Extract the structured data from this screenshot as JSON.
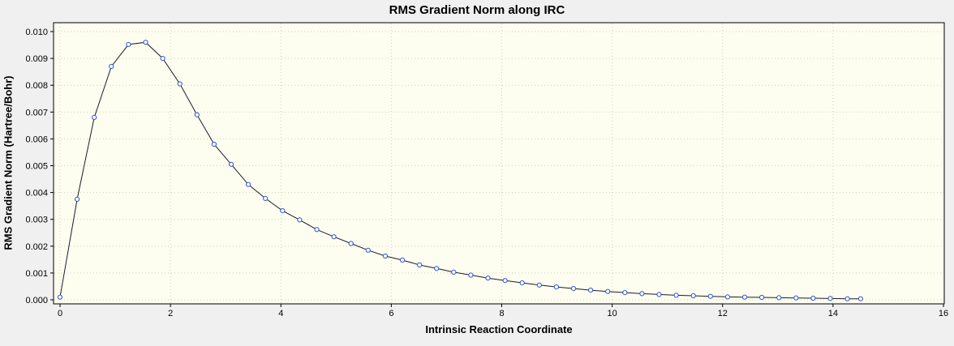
{
  "chart_data": {
    "type": "line",
    "title": "RMS Gradient Norm along IRC",
    "xlabel": "Intrinsic Reaction Coordinate",
    "ylabel": "RMS Gradient Norm (Hartree/Bohr)",
    "xlim": [
      0,
      16
    ],
    "ylim": [
      0,
      0.01
    ],
    "grid": true,
    "legend": "none",
    "xticks": [
      {
        "value": 0,
        "label": "0"
      },
      {
        "value": 2,
        "label": "2"
      },
      {
        "value": 4,
        "label": "4"
      },
      {
        "value": 6,
        "label": "6"
      },
      {
        "value": 8,
        "label": "8"
      },
      {
        "value": 10,
        "label": "10"
      },
      {
        "value": 12,
        "label": "12"
      },
      {
        "value": 14,
        "label": "14"
      },
      {
        "value": 16,
        "label": "16"
      }
    ],
    "yticks": [
      {
        "value": 0.0,
        "label": "0.000"
      },
      {
        "value": 0.001,
        "label": "0.001"
      },
      {
        "value": 0.002,
        "label": "0.002"
      },
      {
        "value": 0.003,
        "label": "0.003"
      },
      {
        "value": 0.004,
        "label": "0.004"
      },
      {
        "value": 0.005,
        "label": "0.005"
      },
      {
        "value": 0.006,
        "label": "0.006"
      },
      {
        "value": 0.007,
        "label": "0.007"
      },
      {
        "value": 0.008,
        "label": "0.008"
      },
      {
        "value": 0.009,
        "label": "0.009"
      },
      {
        "value": 0.01,
        "label": "0.010"
      }
    ],
    "series": [
      {
        "name": "RMS Gradient Norm",
        "marker": "open-circle",
        "points": [
          [
            0.0,
            0.0001
          ],
          [
            0.31,
            0.00375
          ],
          [
            0.62,
            0.0068
          ],
          [
            0.93,
            0.0087
          ],
          [
            1.24,
            0.00952
          ],
          [
            1.55,
            0.0096
          ],
          [
            1.86,
            0.009
          ],
          [
            2.17,
            0.00805
          ],
          [
            2.48,
            0.0069
          ],
          [
            2.79,
            0.0058
          ],
          [
            3.1,
            0.00505
          ],
          [
            3.41,
            0.0043
          ],
          [
            3.72,
            0.00378
          ],
          [
            4.03,
            0.00332
          ],
          [
            4.34,
            0.00298
          ],
          [
            4.65,
            0.00262
          ],
          [
            4.96,
            0.00235
          ],
          [
            5.27,
            0.0021
          ],
          [
            5.58,
            0.00185
          ],
          [
            5.89,
            0.00163
          ],
          [
            6.2,
            0.00148
          ],
          [
            6.51,
            0.0013
          ],
          [
            6.82,
            0.00117
          ],
          [
            7.13,
            0.00103
          ],
          [
            7.44,
            0.00092
          ],
          [
            7.75,
            0.00081
          ],
          [
            8.06,
            0.00072
          ],
          [
            8.37,
            0.00063
          ],
          [
            8.68,
            0.00055
          ],
          [
            8.99,
            0.00048
          ],
          [
            9.3,
            0.00042
          ],
          [
            9.61,
            0.00036
          ],
          [
            9.92,
            0.00031
          ],
          [
            10.23,
            0.00027
          ],
          [
            10.54,
            0.00023
          ],
          [
            10.85,
            0.0002
          ],
          [
            11.16,
            0.00017
          ],
          [
            11.47,
            0.00015
          ],
          [
            11.78,
            0.00013
          ],
          [
            12.09,
            0.00011
          ],
          [
            12.4,
            0.0001
          ],
          [
            12.71,
            9e-05
          ],
          [
            13.02,
            8e-05
          ],
          [
            13.33,
            7e-05
          ],
          [
            13.64,
            6e-05
          ],
          [
            13.95,
            5e-05
          ],
          [
            14.26,
            4e-05
          ],
          [
            14.5,
            4e-05
          ]
        ]
      }
    ],
    "colors": {
      "page_bg": "#f0f0f0",
      "plot_bg": "#fdfdf0",
      "grid": "#cfcfc3",
      "frame": "#000000",
      "line": "#1c1c30",
      "marker_stroke": "#3355cc",
      "marker_fill": "#fdfdf0",
      "text": "#000000"
    }
  }
}
